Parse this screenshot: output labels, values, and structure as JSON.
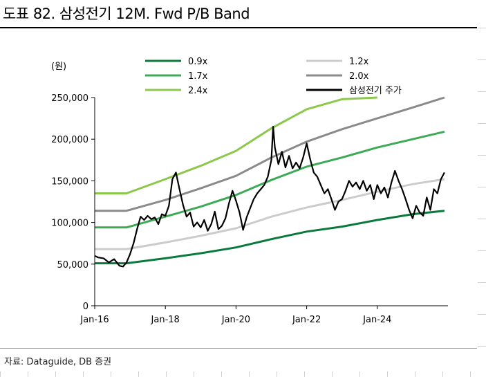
{
  "header": {
    "title": "도표 82. 삼성전기 12M. Fwd P/B Band"
  },
  "footer": {
    "source": "자료: Dataguide, DB 증권"
  },
  "chart_data": {
    "type": "line",
    "title": "도표 82. 삼성전기 12M. Fwd P/B Band",
    "ylabel": "(원)",
    "xlabel": "",
    "ylim": [
      0,
      250000
    ],
    "xlim": [
      2016.0,
      2026.0
    ],
    "yticks": [
      0,
      50000,
      100000,
      150000,
      200000,
      250000
    ],
    "ytick_labels": [
      "0",
      "50,000",
      "100,000",
      "150,000",
      "200,000",
      "250,000"
    ],
    "xticks": [
      2016,
      2018,
      2020,
      2022,
      2024
    ],
    "xtick_labels": [
      "Jan-16",
      "Jan-18",
      "Jan-20",
      "Jan-22",
      "Jan-24"
    ],
    "legend_position": "top",
    "series": [
      {
        "name": "0.9x",
        "color": "#0a7a3c",
        "x": [
          2016.0,
          2016.9,
          2018.0,
          2019.0,
          2020.0,
          2021.0,
          2022.0,
          2023.0,
          2024.0,
          2025.0,
          2025.9
        ],
        "values": [
          51000,
          51000,
          57000,
          63000,
          70000,
          80000,
          89000,
          95000,
          103000,
          110000,
          114000
        ]
      },
      {
        "name": "1.2x",
        "color": "#cccccc",
        "x": [
          2016.0,
          2016.9,
          2018.0,
          2019.0,
          2020.0,
          2021.0,
          2022.0,
          2023.0,
          2024.0,
          2025.0,
          2025.9
        ],
        "values": [
          68000,
          68000,
          76000,
          84000,
          93000,
          107000,
          118000,
          127000,
          137000,
          146000,
          152000
        ]
      },
      {
        "name": "1.7x",
        "color": "#3daa55",
        "x": [
          2016.0,
          2016.9,
          2018.0,
          2019.0,
          2020.0,
          2021.0,
          2022.0,
          2023.0,
          2024.0,
          2025.0,
          2025.9
        ],
        "values": [
          94000,
          94000,
          107000,
          119000,
          133000,
          151000,
          167000,
          178000,
          190000,
          200000,
          209000
        ]
      },
      {
        "name": "2.0x",
        "color": "#8a8a8a",
        "x": [
          2016.0,
          2016.9,
          2018.0,
          2019.0,
          2020.0,
          2021.0,
          2022.0,
          2023.0,
          2024.0,
          2025.0,
          2025.9
        ],
        "values": [
          114000,
          114000,
          127000,
          141000,
          156000,
          178000,
          197000,
          212000,
          225000,
          238000,
          250000
        ]
      },
      {
        "name": "2.4x",
        "color": "#8cc84b",
        "x": [
          2016.0,
          2016.9,
          2018.0,
          2019.0,
          2020.0,
          2021.0,
          2022.0,
          2023.0,
          2024.0
        ],
        "values": [
          135000,
          135000,
          152000,
          168000,
          186000,
          213000,
          236000,
          248000,
          259000
        ]
      },
      {
        "name": "삼성전기 주가",
        "color": "#000000",
        "x": [
          2016.0,
          2016.1,
          2016.25,
          2016.4,
          2016.55,
          2016.7,
          2016.8,
          2016.9,
          2017.0,
          2017.1,
          2017.2,
          2017.3,
          2017.4,
          2017.5,
          2017.6,
          2017.7,
          2017.8,
          2017.9,
          2018.0,
          2018.1,
          2018.2,
          2018.3,
          2018.4,
          2018.5,
          2018.6,
          2018.7,
          2018.8,
          2018.9,
          2019.0,
          2019.1,
          2019.2,
          2019.3,
          2019.4,
          2019.5,
          2019.6,
          2019.7,
          2019.8,
          2019.9,
          2020.0,
          2020.1,
          2020.2,
          2020.3,
          2020.4,
          2020.5,
          2020.6,
          2020.7,
          2020.8,
          2020.9,
          2021.0,
          2021.05,
          2021.1,
          2021.2,
          2021.3,
          2021.4,
          2021.5,
          2021.6,
          2021.7,
          2021.8,
          2021.9,
          2022.0,
          2022.1,
          2022.2,
          2022.3,
          2022.4,
          2022.5,
          2022.6,
          2022.7,
          2022.8,
          2022.9,
          2023.0,
          2023.1,
          2023.2,
          2023.3,
          2023.4,
          2023.5,
          2023.6,
          2023.7,
          2023.8,
          2023.9,
          2024.0,
          2024.1,
          2024.2,
          2024.3,
          2024.4,
          2024.5,
          2024.6,
          2024.7,
          2024.8,
          2024.9,
          2025.0,
          2025.1,
          2025.2,
          2025.3,
          2025.4,
          2025.5,
          2025.6,
          2025.7,
          2025.8,
          2025.9
        ],
        "values": [
          60000,
          58000,
          57000,
          52000,
          56000,
          48000,
          47000,
          52000,
          62000,
          75000,
          92000,
          107000,
          103000,
          108000,
          104000,
          106000,
          98000,
          110000,
          108000,
          120000,
          152000,
          160000,
          140000,
          121000,
          107000,
          112000,
          95000,
          100000,
          94000,
          103000,
          90000,
          98000,
          113000,
          92000,
          96000,
          105000,
          123000,
          138000,
          126000,
          112000,
          91000,
          106000,
          117000,
          128000,
          135000,
          140000,
          145000,
          155000,
          175000,
          215000,
          190000,
          170000,
          185000,
          166000,
          180000,
          165000,
          172000,
          165000,
          178000,
          195000,
          176000,
          160000,
          155000,
          145000,
          135000,
          140000,
          128000,
          115000,
          125000,
          128000,
          138000,
          150000,
          143000,
          148000,
          140000,
          150000,
          138000,
          145000,
          128000,
          145000,
          135000,
          142000,
          130000,
          148000,
          162000,
          150000,
          140000,
          128000,
          115000,
          105000,
          120000,
          112000,
          108000,
          130000,
          115000,
          140000,
          135000,
          152000,
          160000
        ]
      }
    ]
  }
}
